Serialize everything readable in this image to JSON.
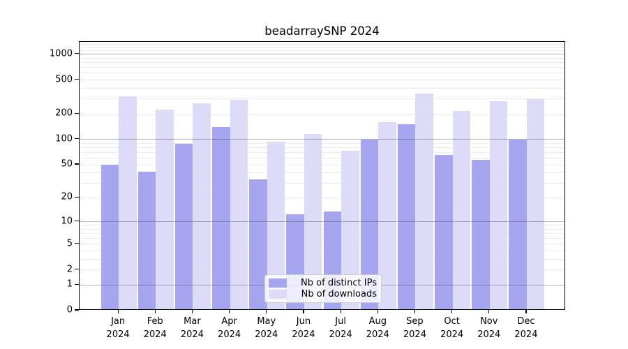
{
  "chart_data": {
    "type": "bar",
    "title": "beadarraySNP 2024",
    "categories": [
      "Jan\n2024",
      "Feb\n2024",
      "Mar\n2024",
      "Apr\n2024",
      "May\n2024",
      "Jun\n2024",
      "Jul\n2024",
      "Aug\n2024",
      "Sep\n2024",
      "Oct\n2024",
      "Nov\n2024",
      "Dec\n2024"
    ],
    "series": [
      {
        "name": "Nb of distinct IPs",
        "color": "#a6a6f0",
        "values": [
          48,
          40,
          85,
          135,
          32,
          12,
          13,
          96,
          145,
          63,
          55,
          95
        ]
      },
      {
        "name": "Nb of downloads",
        "color": "#dcdcf8",
        "values": [
          310,
          215,
          255,
          280,
          90,
          112,
          70,
          155,
          335,
          210,
          270,
          285
        ]
      }
    ],
    "yscale": "log10(1+y)",
    "ylim": [
      0,
      1400
    ],
    "yticks": [
      1000,
      500,
      200,
      100,
      50,
      20,
      10,
      5,
      2,
      1,
      0
    ],
    "grid_major": [
      1,
      10,
      100,
      1000
    ],
    "grid_minor": [
      2,
      3,
      4,
      5,
      6,
      7,
      8,
      9,
      20,
      30,
      40,
      50,
      60,
      70,
      80,
      90,
      200,
      300,
      400,
      500,
      600,
      700,
      800,
      900,
      1100,
      1200,
      1300
    ],
    "legend_position": "lower center",
    "xlabel": "",
    "ylabel": "",
    "colors": {
      "axis": "#000000",
      "grid_major": "#a8a8a8",
      "grid_minor": "#ebebeb",
      "background": "#ffffff"
    }
  }
}
